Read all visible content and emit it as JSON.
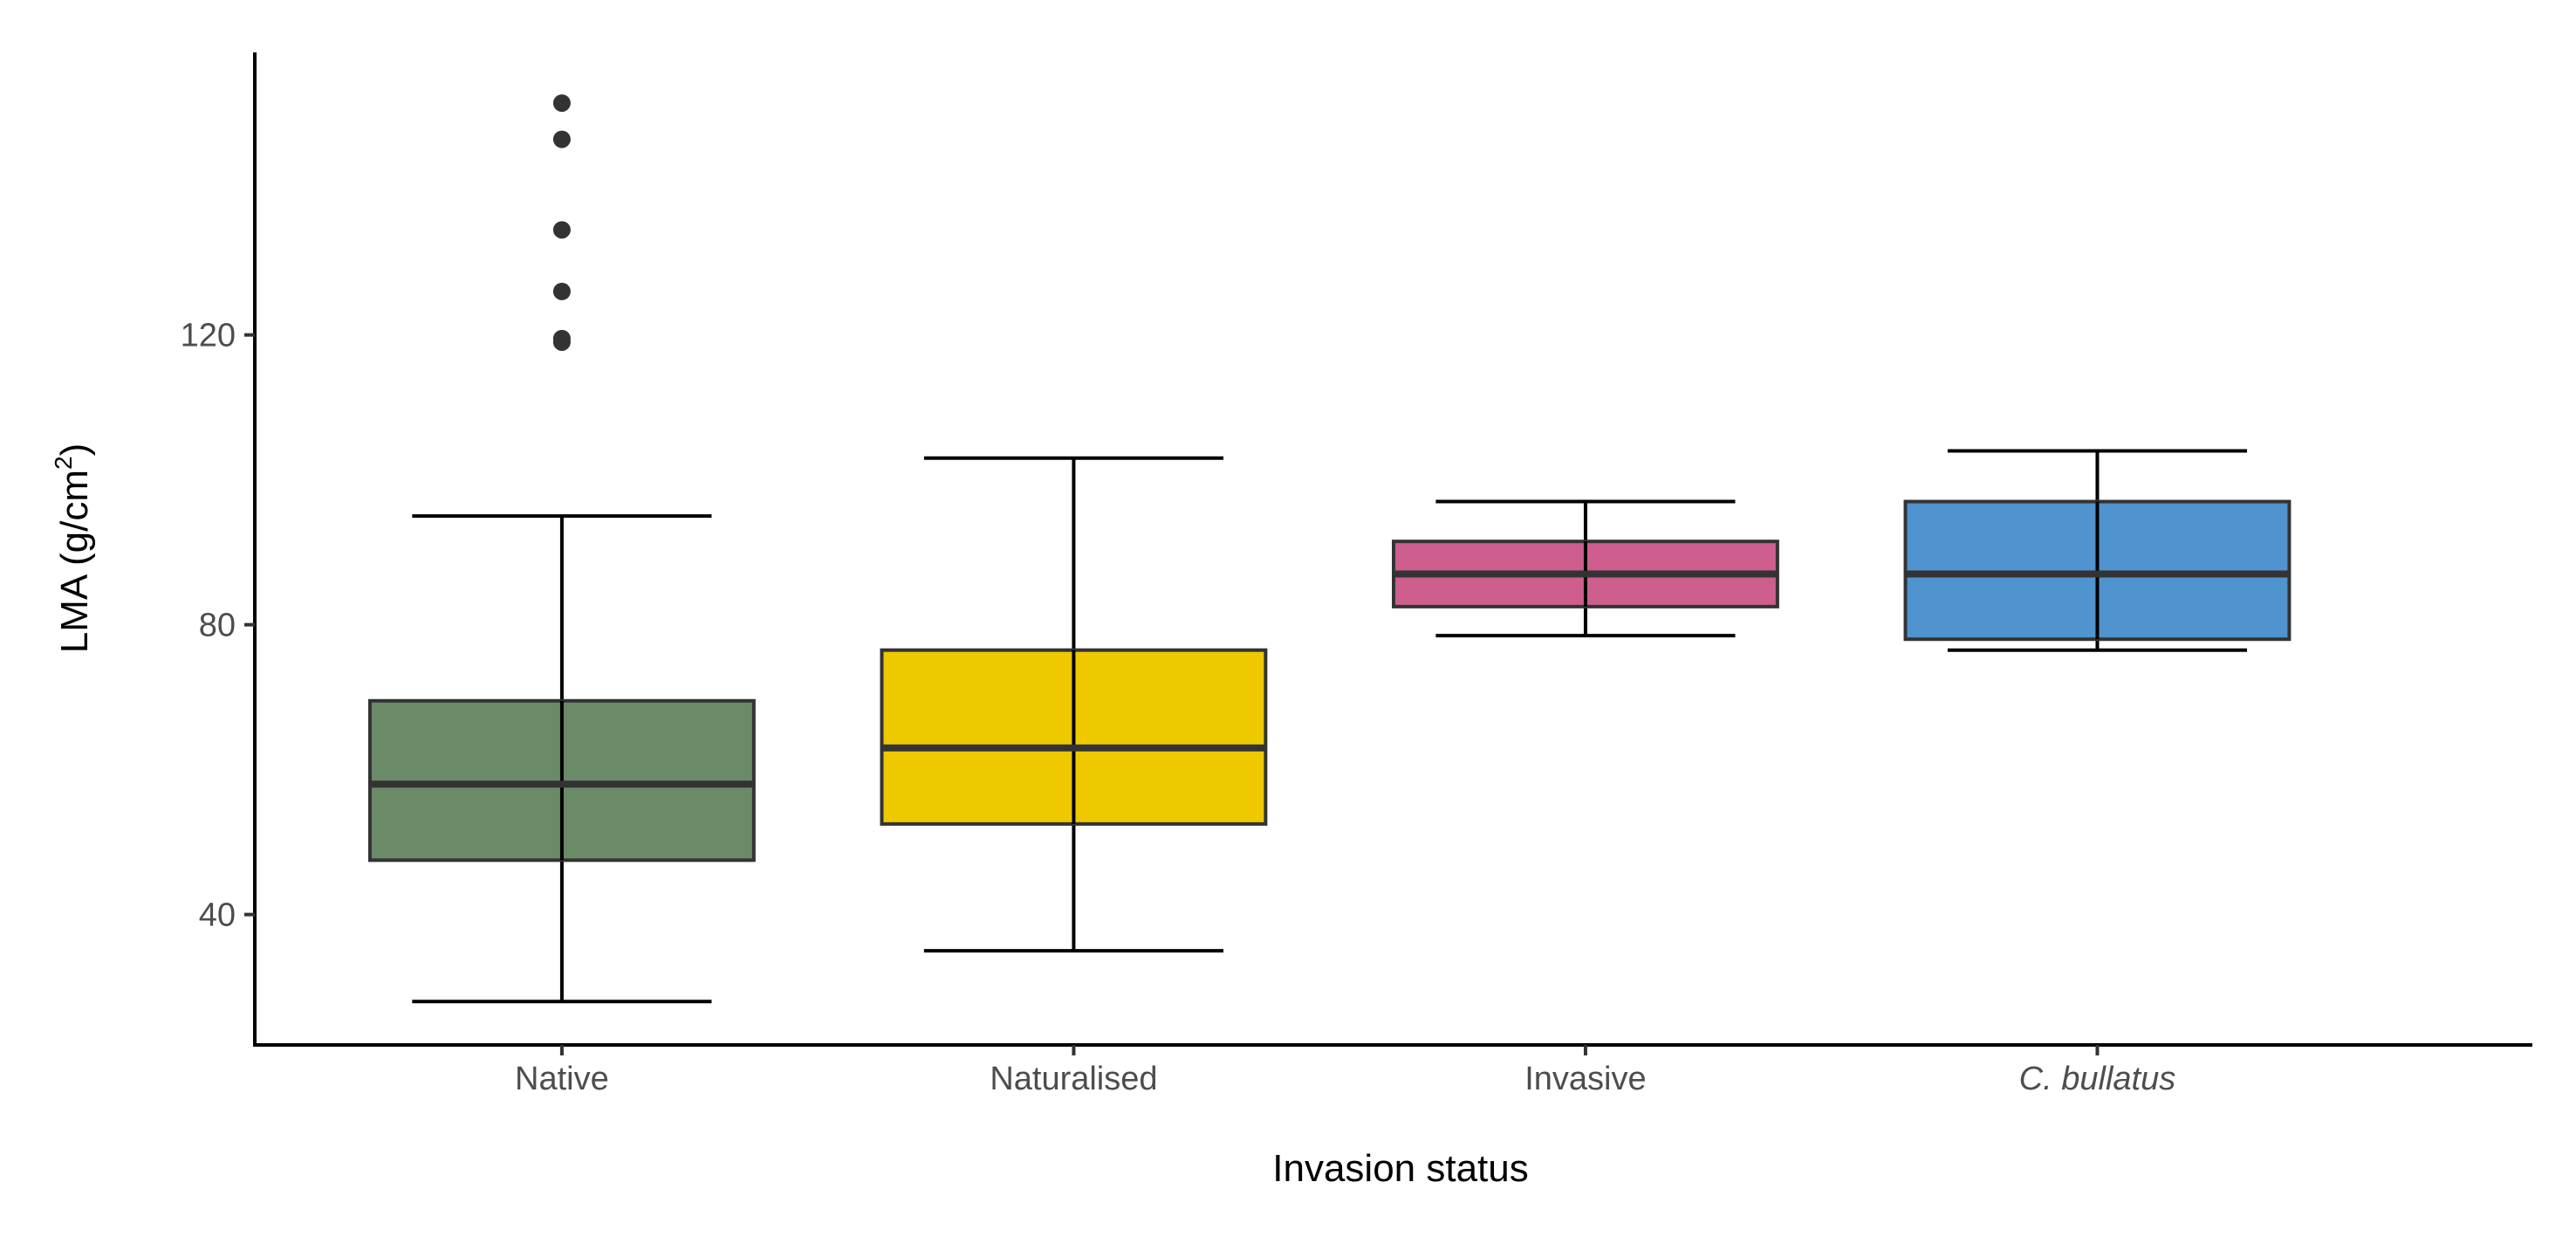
{
  "chart_data": {
    "type": "boxplot",
    "title": "",
    "xlabel": "Invasion status",
    "ylabel": "LMA (g/cm",
    "ylabel_superscript": "2",
    "ylabel_suffix": ")",
    "ylim": [
      22,
      159
    ],
    "yticks": [
      40,
      80,
      120
    ],
    "grid": false,
    "legend": "none",
    "categories": [
      "Native",
      "Naturalised",
      "Invasive",
      "C. bullatus"
    ],
    "italic_categories": [
      "C. bullatus"
    ],
    "boxes": [
      {
        "category": "Native",
        "whisker_low": 28,
        "q1": 47.5,
        "median": 58,
        "q3": 69.5,
        "whisker_high": 95,
        "outliers": [
          119,
          119.5,
          126,
          134.5,
          147,
          152
        ],
        "color": "#6a8a68"
      },
      {
        "category": "Naturalised",
        "whisker_low": 35,
        "q1": 52.5,
        "median": 63,
        "q3": 76.5,
        "whisker_high": 103,
        "outliers": [],
        "color": "#eec900"
      },
      {
        "category": "Invasive",
        "whisker_low": 78.5,
        "q1": 82.5,
        "median": 87,
        "q3": 91.5,
        "whisker_high": 97,
        "outliers": [],
        "color": "#cd5e8d"
      },
      {
        "category": "C. bullatus",
        "whisker_low": 76.5,
        "q1": 78,
        "median": 87,
        "q3": 97,
        "whisker_high": 104,
        "outliers": [],
        "color": "#4f93cf"
      }
    ]
  }
}
